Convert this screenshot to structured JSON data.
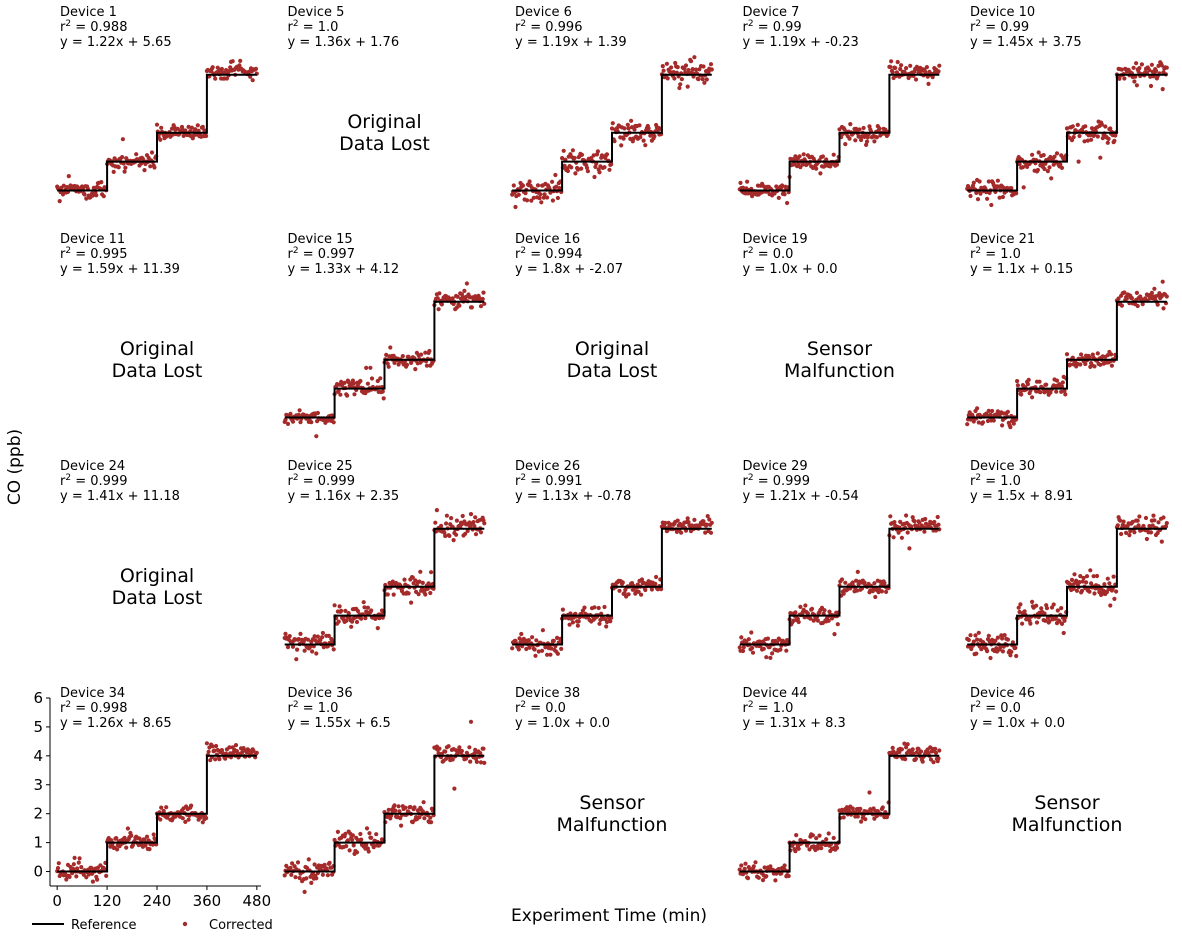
{
  "figure": {
    "ylabel": "CO (ppb)",
    "xlabel": "Experiment Time (min)",
    "legend": [
      {
        "label": "Reference",
        "kind": "line",
        "color": "#000000"
      },
      {
        "label": "Corrected",
        "kind": "marker",
        "color": "#a52a2a"
      }
    ]
  },
  "colors": {
    "corrected": "#a52a2a",
    "reference": "#000000"
  },
  "chart_data": {
    "type": "scatter",
    "grid": false,
    "layout": "4 rows x 5 columns of small multiples, shared axes",
    "xlim": [
      -10,
      490
    ],
    "ylim": [
      -0.5,
      6
    ],
    "xticks": [
      0,
      120,
      240,
      360,
      480
    ],
    "yticks": [
      0,
      1,
      2,
      3,
      4,
      5,
      6
    ],
    "reference_steps": [
      {
        "x": [
          0,
          120
        ],
        "y": 0
      },
      {
        "x": [
          120,
          240
        ],
        "y": 1
      },
      {
        "x": [
          240,
          360
        ],
        "y": 2
      },
      {
        "x": [
          360,
          480
        ],
        "y": 4
      }
    ],
    "corrected_levels": [
      0.0,
      1.0,
      2.0,
      4.1
    ],
    "point_interval_min": 2,
    "panels": [
      {
        "device": "Device 1",
        "r2": "0.988",
        "fit": "y = 1.22x + 5.65",
        "status": "ok"
      },
      {
        "device": "Device 5",
        "r2": "1.0",
        "fit": "y = 1.36x + 1.76",
        "status": "lost",
        "message": [
          "Original",
          "Data Lost"
        ]
      },
      {
        "device": "Device 6",
        "r2": "0.996",
        "fit": "y = 1.19x + 1.39",
        "status": "ok"
      },
      {
        "device": "Device 7",
        "r2": "0.99",
        "fit": "y = 1.19x + -0.23",
        "status": "ok"
      },
      {
        "device": "Device 10",
        "r2": "0.99",
        "fit": "y = 1.45x + 3.75",
        "status": "ok"
      },
      {
        "device": "Device 11",
        "r2": "0.995",
        "fit": "y = 1.59x + 11.39",
        "status": "lost",
        "message": [
          "Original",
          "Data Lost"
        ]
      },
      {
        "device": "Device 15",
        "r2": "0.997",
        "fit": "y = 1.33x + 4.12",
        "status": "ok"
      },
      {
        "device": "Device 16",
        "r2": "0.994",
        "fit": "y = 1.8x + -2.07",
        "status": "lost",
        "message": [
          "Original",
          "Data Lost"
        ]
      },
      {
        "device": "Device 19",
        "r2": "0.0",
        "fit": "y = 1.0x + 0.0",
        "status": "fault",
        "message": [
          "Sensor",
          "Malfunction"
        ]
      },
      {
        "device": "Device 21",
        "r2": "1.0",
        "fit": "y = 1.1x + 0.15",
        "status": "ok"
      },
      {
        "device": "Device 24",
        "r2": "0.999",
        "fit": "y = 1.41x + 11.18",
        "status": "lost",
        "message": [
          "Original",
          "Data Lost"
        ]
      },
      {
        "device": "Device 25",
        "r2": "0.999",
        "fit": "y = 1.16x + 2.35",
        "status": "ok"
      },
      {
        "device": "Device 26",
        "r2": "0.991",
        "fit": "y = 1.13x + -0.78",
        "status": "ok"
      },
      {
        "device": "Device 29",
        "r2": "0.999",
        "fit": "y = 1.21x + -0.54",
        "status": "ok"
      },
      {
        "device": "Device 30",
        "r2": "1.0",
        "fit": "y = 1.5x + 8.91",
        "status": "ok"
      },
      {
        "device": "Device 34",
        "r2": "0.998",
        "fit": "y = 1.26x + 8.65",
        "status": "ok"
      },
      {
        "device": "Device 36",
        "r2": "1.0",
        "fit": "y = 1.55x + 6.5",
        "status": "ok"
      },
      {
        "device": "Device 38",
        "r2": "0.0",
        "fit": "y = 1.0x + 0.0",
        "status": "fault",
        "message": [
          "Sensor",
          "Malfunction"
        ]
      },
      {
        "device": "Device 44",
        "r2": "1.0",
        "fit": "y = 1.31x + 8.3",
        "status": "ok"
      },
      {
        "device": "Device 46",
        "r2": "0.0",
        "fit": "y = 1.0x + 0.0",
        "status": "fault",
        "message": [
          "Sensor",
          "Malfunction"
        ]
      }
    ]
  }
}
